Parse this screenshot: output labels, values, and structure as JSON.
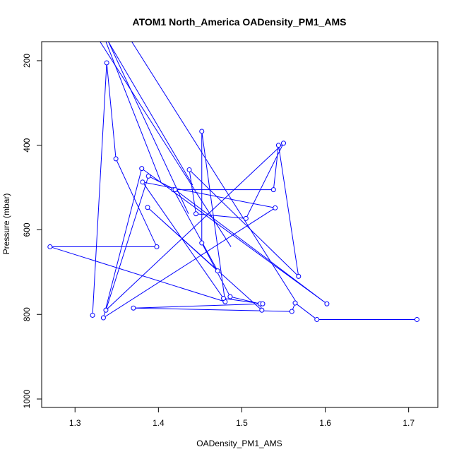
{
  "chart_data": {
    "type": "line",
    "title": "ATOM1 North_America OADensity_PM1_AMS",
    "xlabel": "OADensity_PM1_AMS",
    "ylabel": "Pressure (mbar)",
    "xlim": [
      1.26,
      1.735
    ],
    "ylim": [
      1020,
      155
    ],
    "y_axis_inverted": true,
    "xticks": [
      1.3,
      1.4,
      1.5,
      1.6,
      1.7
    ],
    "xtick_labels": [
      "1.3",
      "1.4",
      "1.5",
      "1.6",
      "1.7"
    ],
    "yticks": [
      200,
      400,
      600,
      800,
      1000
    ],
    "ytick_labels": [
      "200",
      "400",
      "600",
      "800",
      "1000"
    ],
    "grid": false,
    "legend": "none",
    "color": "#0000ff",
    "marker": "open-circle",
    "series": [
      {
        "x": [
          1.321,
          1.338,
          1.349,
          1.398,
          1.27,
          1.48,
          1.452,
          1.452,
          1.486,
          1.522,
          1.524,
          1.387,
          1.471,
          1.418,
          1.538,
          1.544,
          1.568,
          1.437,
          1.445,
          1.505,
          1.55,
          1.337,
          1.388,
          1.42,
          1.602,
          1.38,
          1.334,
          1.54,
          1.381,
          1.478,
          1.525,
          1.37,
          1.56,
          1.564,
          1.59,
          1.71
        ]
      },
      {
        "y": [
          802,
          205,
          432,
          640,
          640,
          770,
          367,
          631,
          758,
          775,
          790,
          547,
          697,
          505,
          505,
          400,
          710,
          458,
          562,
          573,
          395,
          790,
          473,
          505,
          775,
          455,
          808,
          548,
          487,
          762,
          775,
          785,
          793,
          773,
          812,
          812
        ]
      }
    ],
    "clipped_segments": [
      {
        "x": [
          1.34,
          1.441
        ],
        "y": [
          155,
          494
        ]
      },
      {
        "x": [
          1.368,
          1.566
        ],
        "y": [
          155,
          773
        ]
      },
      {
        "x": [
          1.337,
          1.403
        ],
        "y": [
          155,
          487
        ]
      },
      {
        "x": [
          1.34,
          1.436
        ],
        "y": [
          155,
          562
        ]
      },
      {
        "x": [
          1.33,
          1.487
        ],
        "y": [
          155,
          640
        ]
      }
    ]
  }
}
